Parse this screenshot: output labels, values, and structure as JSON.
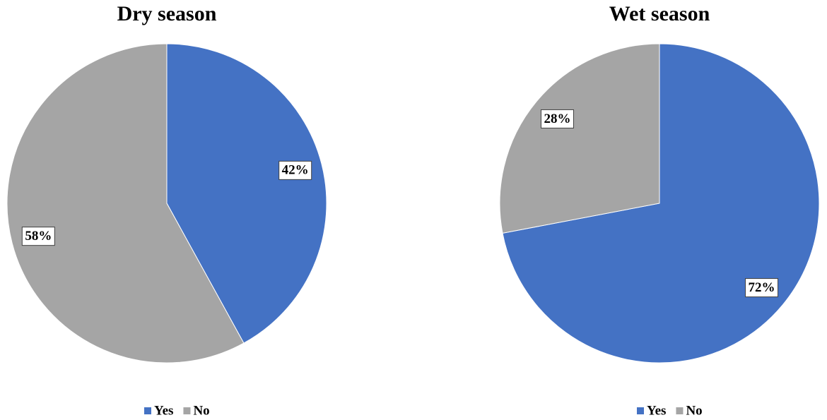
{
  "chart_data": [
    {
      "type": "pie",
      "title": "Dry season",
      "categories": [
        "Yes",
        "No"
      ],
      "values": [
        42,
        58
      ],
      "value_labels": [
        "42%",
        "58%"
      ],
      "colors": [
        "#4472c4",
        "#a5a5a5"
      ],
      "legend": "bottom"
    },
    {
      "type": "pie",
      "title": "Wet season",
      "categories": [
        "Yes",
        "No"
      ],
      "values": [
        72,
        28
      ],
      "value_labels": [
        "72%",
        "28%"
      ],
      "colors": [
        "#4472c4",
        "#a5a5a5"
      ],
      "legend": "bottom"
    }
  ]
}
